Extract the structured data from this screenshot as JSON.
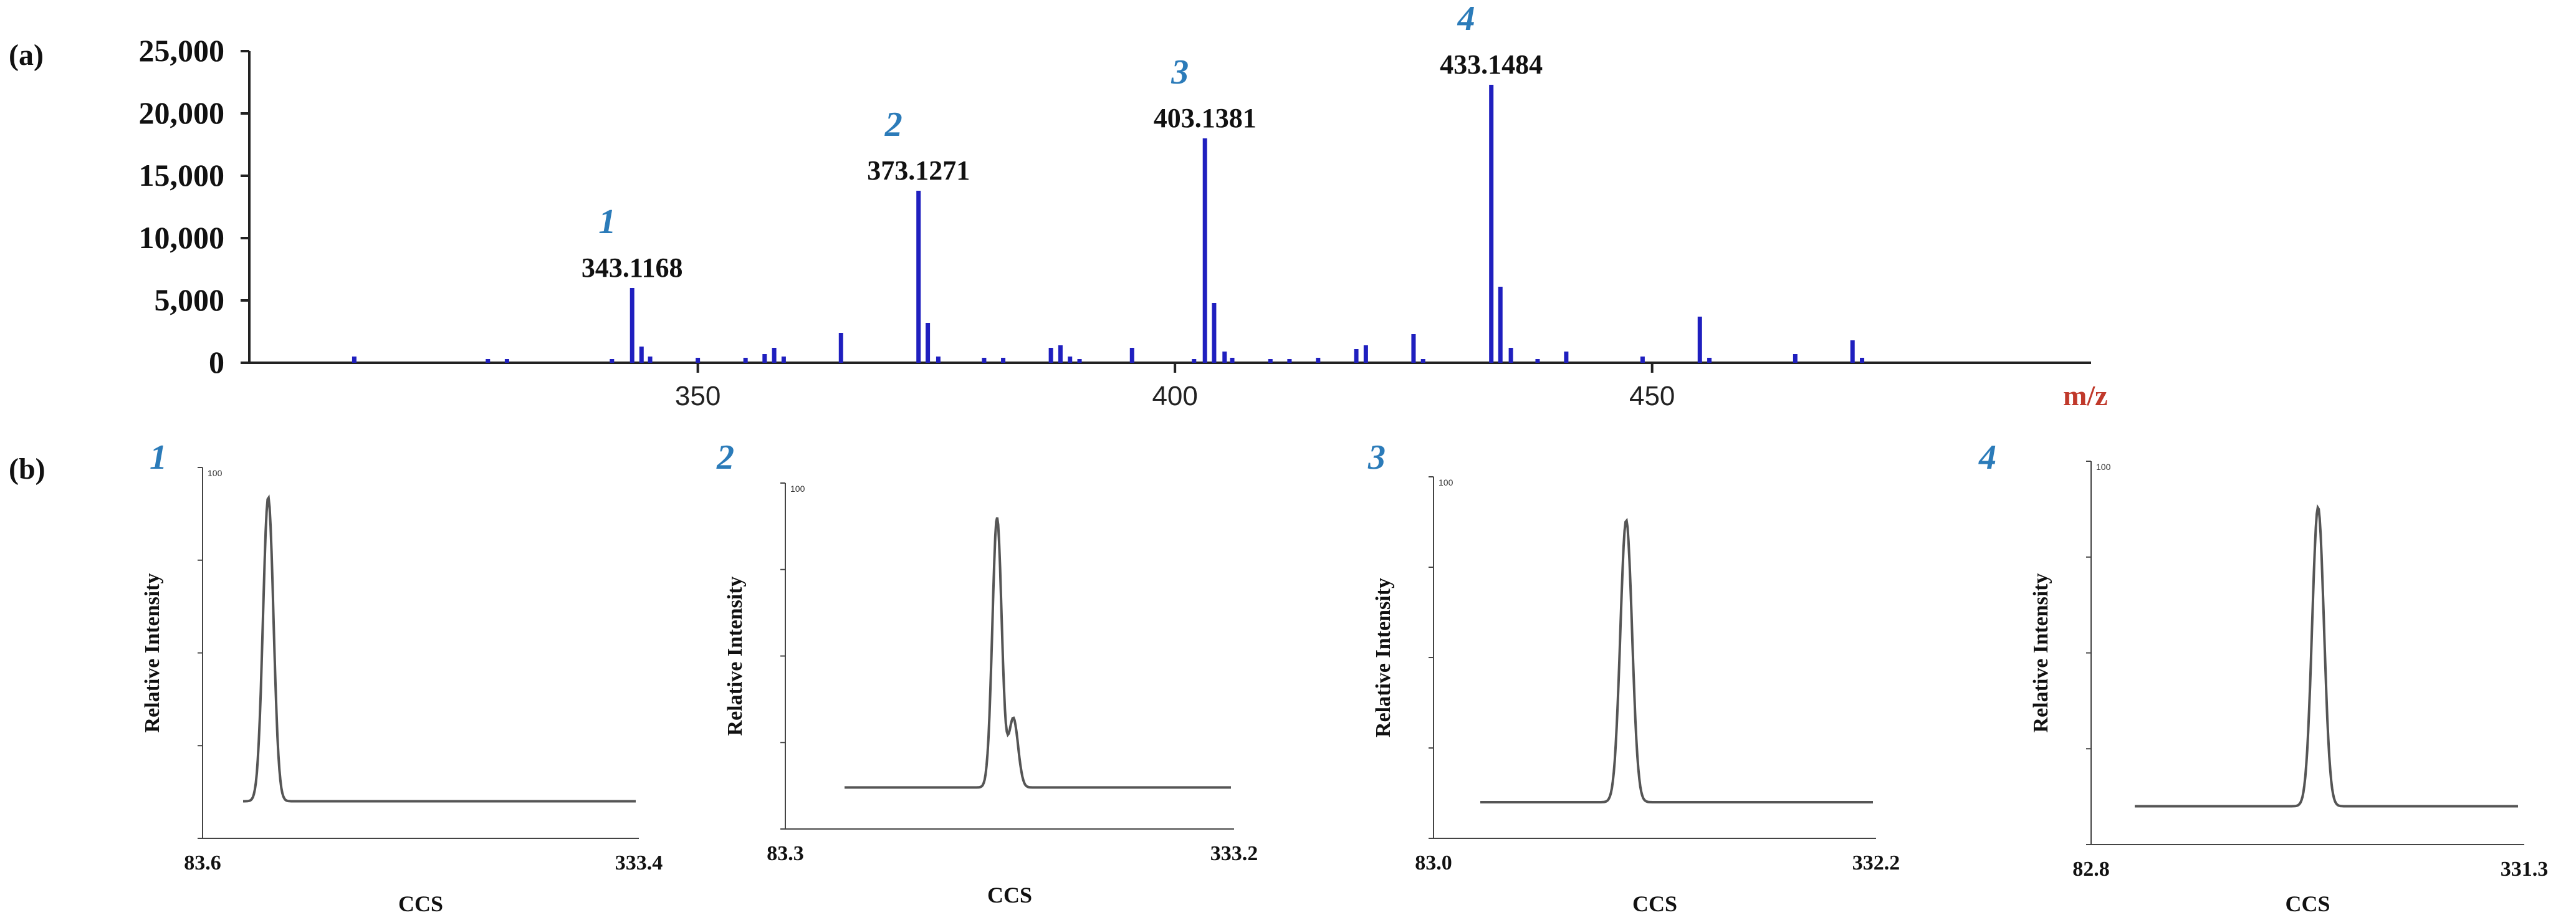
{
  "panel_labels": {
    "a": "(a)",
    "b": "(b)"
  },
  "colors": {
    "spectrum": "#1f1fbf",
    "peak_number": "#2b7bb9",
    "axis_unit": "#c0392b",
    "trace": "#555555",
    "axis": "#222222"
  },
  "chart_data": [
    {
      "type": "bar",
      "title": "",
      "xlabel": "m/z",
      "ylabel": "",
      "xlim": [
        303,
        496
      ],
      "ylim": [
        0,
        25000
      ],
      "xticks": [
        "350",
        "400",
        "450"
      ],
      "yticks": [
        "0",
        "5,000",
        "10,000",
        "15,000",
        "20,000",
        "25,000"
      ],
      "grid": false,
      "series": [
        {
          "x": [
            314.0,
            328.0,
            330.0,
            341.0,
            343.1168,
            344.1,
            345.0,
            350.0,
            355.0,
            357.0,
            358.0,
            359.0,
            365.0,
            373.1271,
            374.1,
            375.2,
            380.0,
            382.0,
            387.0,
            388.0,
            389.0,
            390.0,
            395.5,
            402.0,
            403.1381,
            404.1,
            405.2,
            406.0,
            410.0,
            412.0,
            415.0,
            419.0,
            420.0,
            425.0,
            426.0,
            433.1484,
            434.1,
            435.2,
            438.0,
            441.0,
            449.0,
            455.0,
            456.0,
            465.0,
            471.0,
            472.0
          ],
          "values": [
            500,
            300,
            300,
            300,
            6000,
            1300,
            500,
            400,
            400,
            700,
            1200,
            500,
            2400,
            13800,
            3200,
            500,
            400,
            400,
            1200,
            1400,
            500,
            300,
            1200,
            300,
            18000,
            4800,
            900,
            400,
            300,
            300,
            400,
            1100,
            1400,
            2300,
            300,
            22300,
            6100,
            1200,
            300,
            900,
            500,
            3700,
            400,
            700,
            1800,
            400
          ]
        }
      ],
      "peak_labels": [
        {
          "number": "1",
          "mz": "343.1168",
          "x": 343.1168,
          "y": 6000
        },
        {
          "number": "2",
          "mz": "373.1271",
          "x": 373.1271,
          "y": 13800
        },
        {
          "number": "3",
          "mz": "403.1381",
          "x": 403.1381,
          "y": 18000
        },
        {
          "number": "4",
          "mz": "433.1484",
          "x": 433.1484,
          "y": 22300
        }
      ]
    },
    {
      "type": "line",
      "panel_number": "1",
      "xlabel": "CCS",
      "ylabel": "Relative Intensity",
      "xlim": [
        83.6,
        333.4
      ],
      "ylim": [
        0,
        100
      ],
      "xticks": [
        "83.6",
        "333.4"
      ],
      "ytick_label": "100",
      "baseline": 10,
      "peaks": [
        {
          "center": 121.2,
          "height": 92,
          "width": 3.0
        }
      ]
    },
    {
      "type": "line",
      "panel_number": "2",
      "xlabel": "CCS",
      "ylabel": "Relative Intensity",
      "xlim": [
        83.3,
        333.2
      ],
      "ylim": [
        0,
        100
      ],
      "xticks": [
        "83.3",
        "333.2"
      ],
      "ytick_label": "100",
      "baseline": 12,
      "peaks": [
        {
          "center": 201.2,
          "height": 90,
          "width": 2.6
        },
        {
          "center": 210.3,
          "height": 32,
          "width": 2.6
        }
      ]
    },
    {
      "type": "line",
      "panel_number": "3",
      "xlabel": "CCS",
      "ylabel": "Relative Intensity",
      "xlim": [
        83.0,
        332.2
      ],
      "ylim": [
        0,
        100
      ],
      "xticks": [
        "83.0",
        "332.2"
      ],
      "ytick_label": "100",
      "baseline": 10,
      "peaks": [
        {
          "center": 191.5,
          "height": 88,
          "width": 3.3
        }
      ]
    },
    {
      "type": "line",
      "panel_number": "4",
      "xlabel": "CCS",
      "ylabel": "Relative Intensity",
      "xlim": [
        82.8,
        331.3
      ],
      "ylim": [
        0,
        100
      ],
      "xticks": [
        "82.8",
        "331.3"
      ],
      "ytick_label": "100",
      "baseline": 10,
      "peaks": [
        {
          "center": 213.0,
          "height": 88,
          "width": 3.4
        }
      ]
    }
  ]
}
